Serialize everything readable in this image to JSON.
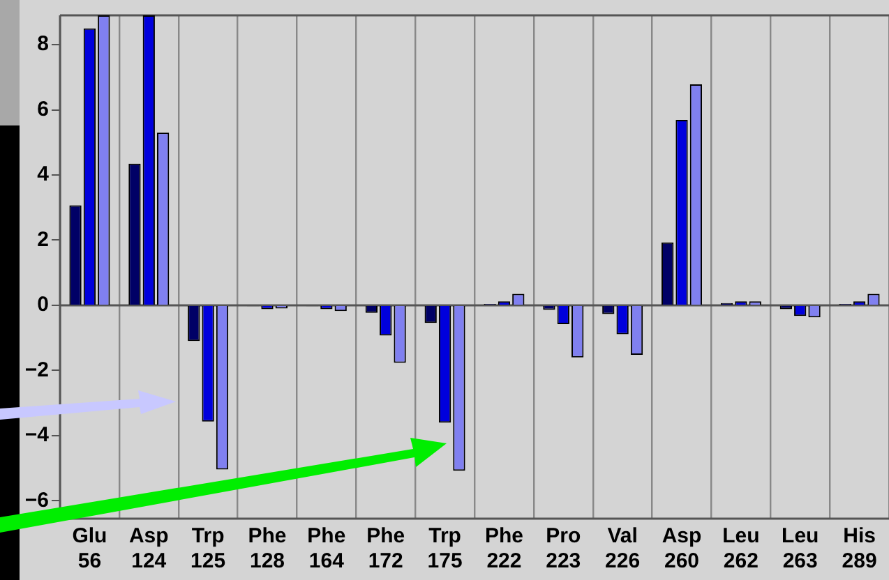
{
  "chart_data": {
    "type": "bar",
    "categories": [
      "Glu\n56",
      "Asp\n124",
      "Trp\n125",
      "Phe\n128",
      "Phe\n164",
      "Phe\n172",
      "Trp\n175",
      "Phe\n222",
      "Pro\n223",
      "Val\n226",
      "Asp\n260",
      "Leu\n262",
      "Leu\n263",
      "His\n289"
    ],
    "series": [
      {
        "color": "#000066",
        "values": [
          3.07,
          4.35,
          -1.1,
          -0.03,
          -0.03,
          -0.23,
          -0.54,
          0.04,
          -0.14,
          -0.27,
          1.93,
          0.07,
          -0.12,
          0.04
        ]
      },
      {
        "color": "#0000dd",
        "values": [
          8.5,
          8.9,
          -3.57,
          -0.12,
          -0.12,
          -0.93,
          -3.6,
          0.12,
          -0.58,
          -0.89,
          5.69,
          0.12,
          -0.33,
          0.12
        ]
      },
      {
        "color": "#8080f0",
        "values": [
          8.9,
          5.3,
          -5.04,
          -0.1,
          -0.18,
          -1.77,
          -5.08,
          0.35,
          -1.6,
          -1.52,
          6.78,
          0.12,
          -0.37,
          0.35
        ]
      }
    ],
    "ylim": [
      -6.55,
      8.9
    ],
    "yticks": [
      -6,
      -4,
      -2,
      0,
      2,
      4,
      6,
      8
    ],
    "grid": "x",
    "legend": false
  }
}
